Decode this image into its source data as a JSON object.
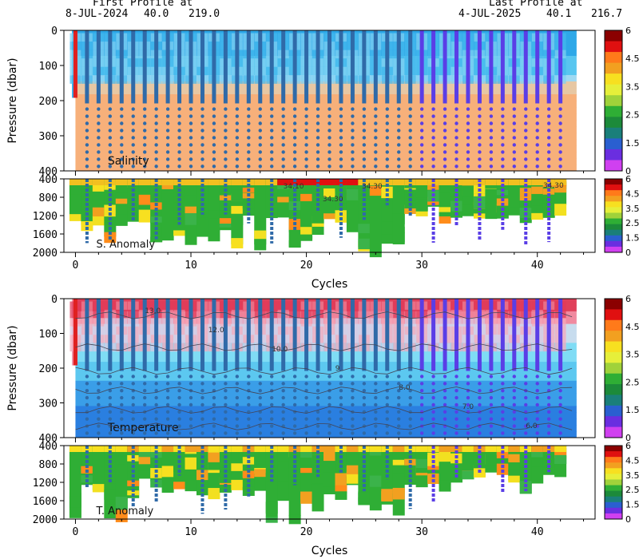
{
  "header": {
    "first_label": "First Profile at",
    "first_date": "8-JUL-2024",
    "first_lat": "40.0",
    "first_lon": "219.0",
    "last_label": "Last Profile at",
    "last_date": "4-JUL-2025",
    "last_lat": "40.1",
    "last_lon": "216.7"
  },
  "colorbar_ticks": [
    "6",
    "4.5",
    "3.5",
    "2.5",
    "1.5",
    "0"
  ],
  "colorbar_colors": [
    "#8b0000",
    "#e01010",
    "#ff7a1a",
    "#f2a020",
    "#f7e020",
    "#e6ef3a",
    "#a0d23a",
    "#2fae35",
    "#1c8a3a",
    "#1a7f7a",
    "#2a5fd0",
    "#6a2ee0",
    "#d040f0"
  ],
  "chart_data": [
    {
      "type": "heatmap",
      "panel": "salinity",
      "label": "Salinity",
      "ylabel": "Pressure (dbar)",
      "ylim": [
        400,
        0
      ],
      "xlim": [
        -1,
        45
      ],
      "yticks": [
        "0",
        "100",
        "200",
        "300",
        "400"
      ],
      "xticks": [
        "0",
        "10",
        "20",
        "30",
        "40"
      ],
      "cycles": 43,
      "contour_labels": []
    },
    {
      "type": "heatmap",
      "panel": "salinity-anomaly",
      "label": "S. Anomaly",
      "ylim": [
        2000,
        400
      ],
      "yticks": [
        "400",
        "800",
        "1200",
        "1600",
        "2000"
      ],
      "xticks": [
        "0",
        "10",
        "20",
        "30",
        "40"
      ],
      "xlabel": "Cycles",
      "contour_labels": [
        "34.10",
        "34.30",
        "34.30",
        "34.30"
      ]
    },
    {
      "type": "heatmap",
      "panel": "temperature",
      "label": "Temperature",
      "ylabel": "Pressure (dbar)",
      "ylim": [
        400,
        0
      ],
      "yticks": [
        "0",
        "100",
        "200",
        "300",
        "400"
      ],
      "xticks": [
        "0",
        "10",
        "20",
        "30",
        "40"
      ],
      "contour_labels": [
        "13.0",
        "12.0",
        "10.0",
        "9",
        "8.0",
        "7.0",
        "6.0"
      ]
    },
    {
      "type": "heatmap",
      "panel": "temperature-anomaly",
      "label": "T. Anomaly",
      "ylim": [
        2000,
        400
      ],
      "yticks": [
        "400",
        "800",
        "1200",
        "1600",
        "2000"
      ],
      "xticks": [
        "0",
        "10",
        "20",
        "30",
        "40"
      ],
      "xlabel": "Cycles",
      "contour_labels": []
    }
  ]
}
